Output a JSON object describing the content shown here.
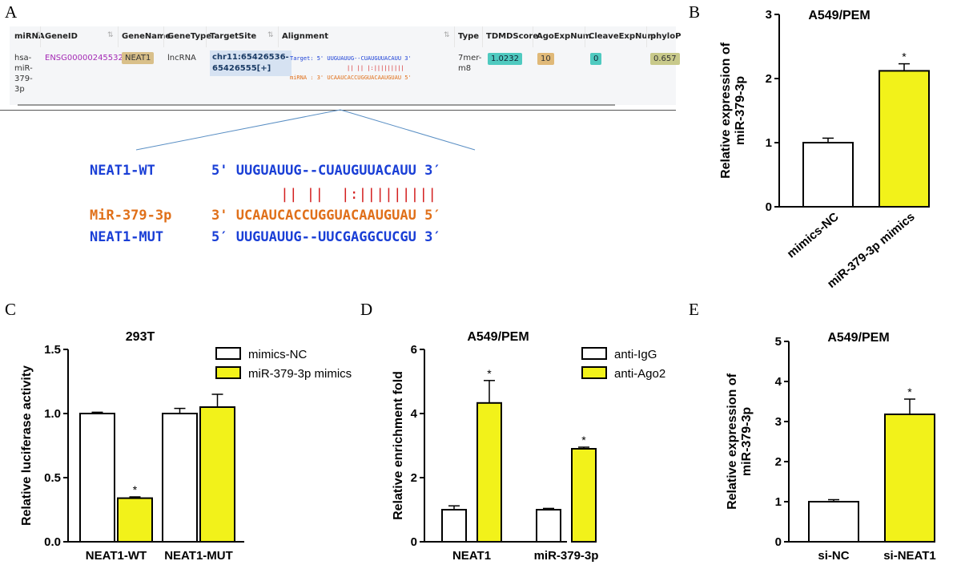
{
  "panels": {
    "a": "A",
    "b": "B",
    "c": "C",
    "d": "D",
    "e": "E"
  },
  "table": {
    "headers": [
      "miRNA",
      "GeneID",
      "GeneName",
      "GeneType",
      "TargetSite",
      "Alignment",
      "Type",
      "TDMDScore",
      "AgoExpNum",
      "CleaveExpNum",
      "phyloP"
    ],
    "row": {
      "mirna_lines": [
        "hsa-",
        "miR-",
        "379-",
        "3p"
      ],
      "gene_id": "ENSG00000245532",
      "gene_name": "NEAT1",
      "gene_type": "lncRNA",
      "target_site_lines": [
        "chr11:65426536-",
        "65426555[+]"
      ],
      "align_target": "Target: 5' UUGUAUUG--CUAUGUUACAUU 3'",
      "align_pairs": "|| ||  |:|||||||||",
      "align_mirna": "miRNA : 3' UCAAUCACCUGGUACAAUGUAU 5'",
      "type_lines": [
        "7mer-",
        "m8"
      ],
      "tdmd_score": "1.0232",
      "ago_exp_num": "10",
      "cleave_exp_num": "0",
      "phylop": "0.657"
    }
  },
  "alignment": {
    "wt_label": "NEAT1-WT",
    "wt_seq": "5' UUGUAUUG--CUAUGUUACAUU 3′",
    "pairs": "|| ||  |:|||||||||",
    "mir_label": "MiR-379-3p",
    "mir_seq": "3' UCAAUCACCUGGUACAAUGUAU 5′",
    "mut_label": "NEAT1-MUT",
    "mut_seq": "5′ UUGUAUUG--UUCGAGGCUCGU 3′"
  },
  "colors": {
    "bar_control": "#ffffff",
    "bar_treat": "#f2f21a",
    "seq_blue": "#1a3fd6",
    "seq_orange": "#e0701a",
    "pair_red": "#d42020"
  },
  "chart_data": [
    {
      "id": "B",
      "type": "bar",
      "title": "A549/PEM",
      "ylabel": "Relative expression of miR-379-3p",
      "ylabel_lines": [
        "Relative expression of",
        "miR-379-3p"
      ],
      "categories": [
        "mimics-NC",
        "miR-379-3p mimics"
      ],
      "values": [
        1.0,
        2.12
      ],
      "errors": [
        0.07,
        0.11
      ],
      "sig": [
        "",
        "*"
      ],
      "ylim": [
        0,
        3
      ],
      "yticks": [
        "0",
        "1",
        "2",
        "3"
      ]
    },
    {
      "id": "C",
      "type": "bar",
      "title": "293T",
      "ylabel": "Relative luciferase activity",
      "categories": [
        "NEAT1-WT",
        "NEAT1-MUT"
      ],
      "series": [
        {
          "name": "mimics-NC",
          "values": [
            1.0,
            1.0
          ],
          "errors": [
            0.01,
            0.04
          ],
          "sig": [
            "",
            ""
          ]
        },
        {
          "name": "miR-379-3p mimics",
          "values": [
            0.34,
            1.05
          ],
          "errors": [
            0.01,
            0.1
          ],
          "sig": [
            "*",
            ""
          ]
        }
      ],
      "ylim": [
        0,
        1.5
      ],
      "yticks": [
        "0.0",
        "0.5",
        "1.0",
        "1.5"
      ],
      "legend": "top-right"
    },
    {
      "id": "D",
      "type": "bar",
      "title": "A549/PEM",
      "ylabel": "Relative enrichment fold",
      "categories": [
        "NEAT1",
        "miR-379-3p"
      ],
      "series": [
        {
          "name": "anti-IgG",
          "values": [
            1.0,
            1.0
          ],
          "errors": [
            0.12,
            0.04
          ],
          "sig": [
            "",
            ""
          ]
        },
        {
          "name": "anti-Ago2",
          "values": [
            4.33,
            2.9
          ],
          "errors": [
            0.7,
            0.05
          ],
          "sig": [
            "*",
            "*"
          ]
        }
      ],
      "ylim": [
        0,
        6
      ],
      "yticks": [
        "0",
        "2",
        "4",
        "6"
      ],
      "legend": "top-right"
    },
    {
      "id": "E",
      "type": "bar",
      "title": "A549/PEM",
      "ylabel": "Relative expression of miR-379-3p",
      "ylabel_lines": [
        "Relative expression of",
        "miR-379-3p"
      ],
      "categories": [
        "si-NC",
        "si-NEAT1"
      ],
      "values": [
        1.0,
        3.18
      ],
      "errors": [
        0.05,
        0.38
      ],
      "sig": [
        "",
        "*"
      ],
      "ylim": [
        0,
        5
      ],
      "yticks": [
        "0",
        "1",
        "2",
        "3",
        "4",
        "5"
      ]
    }
  ]
}
